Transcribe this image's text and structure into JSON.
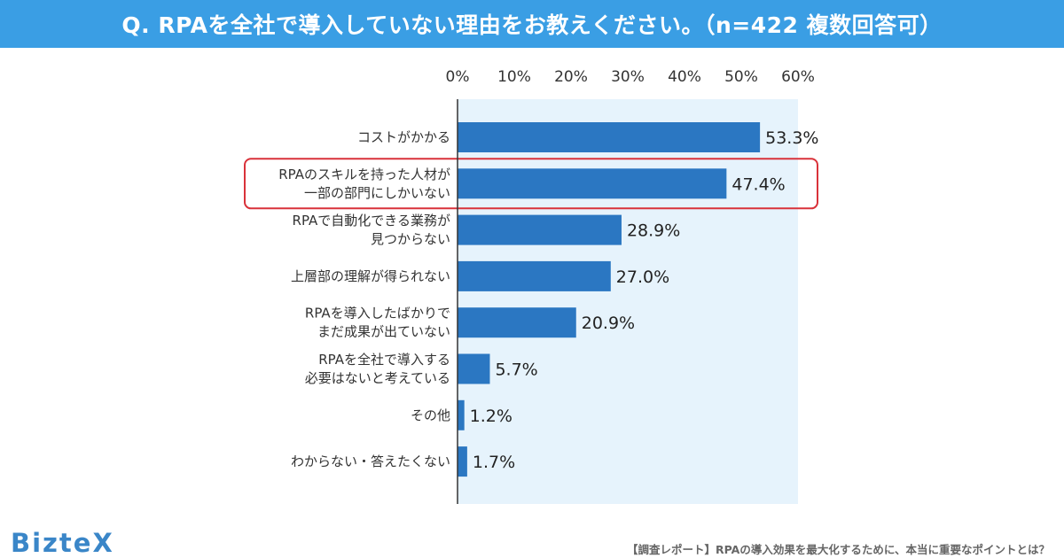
{
  "header": {
    "title": "Q. RPAを全社で導入していない理由をお教えください。（n=422 複数回答可）"
  },
  "chart_data": {
    "type": "bar",
    "orientation": "horizontal",
    "title": "Q. RPAを全社で導入していない理由をお教えください。（n=422 複数回答可）",
    "xlim": [
      0,
      60
    ],
    "x_ticks": [
      "0%",
      "10%",
      "20%",
      "30%",
      "40%",
      "50%",
      "60%"
    ],
    "x_tick_values": [
      0,
      10,
      20,
      30,
      40,
      50,
      60
    ],
    "categories": [
      [
        "コストがかかる"
      ],
      [
        "RPAのスキルを持った人材が",
        "一部の部門にしかいない"
      ],
      [
        "RPAで自動化できる業務が",
        "見つからない"
      ],
      [
        "上層部の理解が得られない"
      ],
      [
        "RPAを導入したばかりで",
        "まだ成果が出ていない"
      ],
      [
        "RPAを全社で導入する",
        "必要はないと考えている"
      ],
      [
        "その他"
      ],
      [
        "わからない・答えたくない"
      ]
    ],
    "values": [
      53.3,
      47.4,
      28.9,
      27.0,
      20.9,
      5.7,
      1.2,
      1.7
    ],
    "value_labels": [
      "53.3%",
      "47.4%",
      "28.9%",
      "27.0%",
      "20.9%",
      "5.7%",
      "1.2%",
      "1.7%"
    ],
    "highlight_index": 1,
    "bar_color": "#2b77c2",
    "plot_bg_color": "#e6f3fc",
    "highlight_color": "#d9323a"
  },
  "brand": {
    "logo": "BizteX"
  },
  "footer": {
    "note": "【調査レポート】RPAの導入効果を最大化するために、本当に重要なポイントとは？"
  }
}
